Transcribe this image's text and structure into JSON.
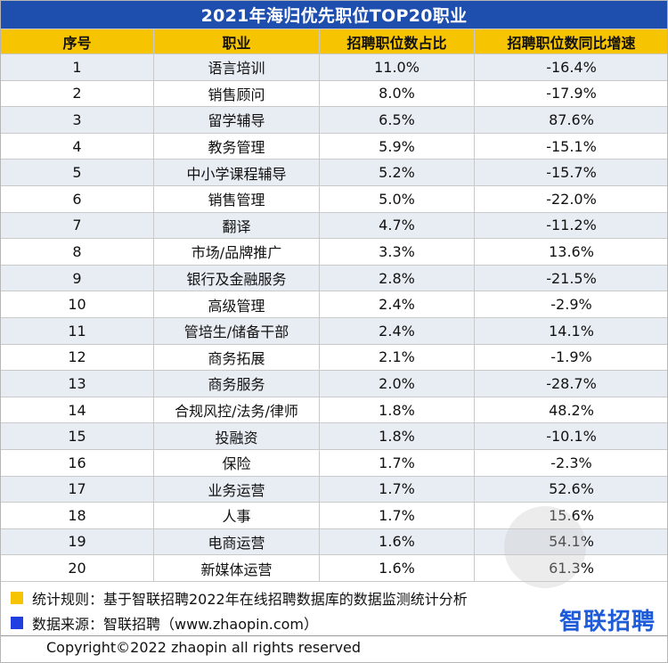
{
  "title": "2021年海归优先职位TOP20职业",
  "headers": [
    "序号",
    "职业",
    "招聘职位数占比",
    "招聘职位数同比增速"
  ],
  "rows": [
    {
      "no": "1",
      "job": "语言培训",
      "share": "11.0%",
      "growth": "-16.4%"
    },
    {
      "no": "2",
      "job": "销售顾问",
      "share": "8.0%",
      "growth": "-17.9%"
    },
    {
      "no": "3",
      "job": "留学辅导",
      "share": "6.5%",
      "growth": "87.6%"
    },
    {
      "no": "4",
      "job": "教务管理",
      "share": "5.9%",
      "growth": "-15.1%"
    },
    {
      "no": "5",
      "job": "中小学课程辅导",
      "share": "5.2%",
      "growth": "-15.7%"
    },
    {
      "no": "6",
      "job": "销售管理",
      "share": "5.0%",
      "growth": "-22.0%"
    },
    {
      "no": "7",
      "job": "翻译",
      "share": "4.7%",
      "growth": "-11.2%"
    },
    {
      "no": "8",
      "job": "市场/品牌推广",
      "share": "3.3%",
      "growth": "13.6%"
    },
    {
      "no": "9",
      "job": "银行及金融服务",
      "share": "2.8%",
      "growth": "-21.5%"
    },
    {
      "no": "10",
      "job": "高级管理",
      "share": "2.4%",
      "growth": "-2.9%"
    },
    {
      "no": "11",
      "job": "管培生/储备干部",
      "share": "2.4%",
      "growth": "14.1%"
    },
    {
      "no": "12",
      "job": "商务拓展",
      "share": "2.1%",
      "growth": "-1.9%"
    },
    {
      "no": "13",
      "job": "商务服务",
      "share": "2.0%",
      "growth": "-28.7%"
    },
    {
      "no": "14",
      "job": "合规风控/法务/律师",
      "share": "1.8%",
      "growth": "48.2%"
    },
    {
      "no": "15",
      "job": "投融资",
      "share": "1.8%",
      "growth": "-10.1%"
    },
    {
      "no": "16",
      "job": "保险",
      "share": "1.7%",
      "growth": "-2.3%"
    },
    {
      "no": "17",
      "job": "业务运营",
      "share": "1.7%",
      "growth": "52.6%"
    },
    {
      "no": "18",
      "job": "人事",
      "share": "1.7%",
      "growth": "15.6%"
    },
    {
      "no": "19",
      "job": "电商运营",
      "share": "1.6%",
      "growth": "54.1%"
    },
    {
      "no": "20",
      "job": "新媒体运营",
      "share": "1.6%",
      "growth": "61.3%"
    }
  ],
  "notes": {
    "rule": "统计规则：基于智联招聘2022年在线招聘数据库的数据监测统计分析",
    "source": "数据来源：智联招聘（www.zhaopin.com）"
  },
  "brand": "智联招聘",
  "copyright": "Copyright©2022 zhaopin all rights reserved",
  "colors": {
    "title_bg": "#1f4fae",
    "header_bg": "#f6c400",
    "alt_row_bg": "#e8edf3",
    "rule_marker": "#f6c400",
    "source_marker": "#1f3fe0",
    "brand": "#1e5bd8"
  }
}
